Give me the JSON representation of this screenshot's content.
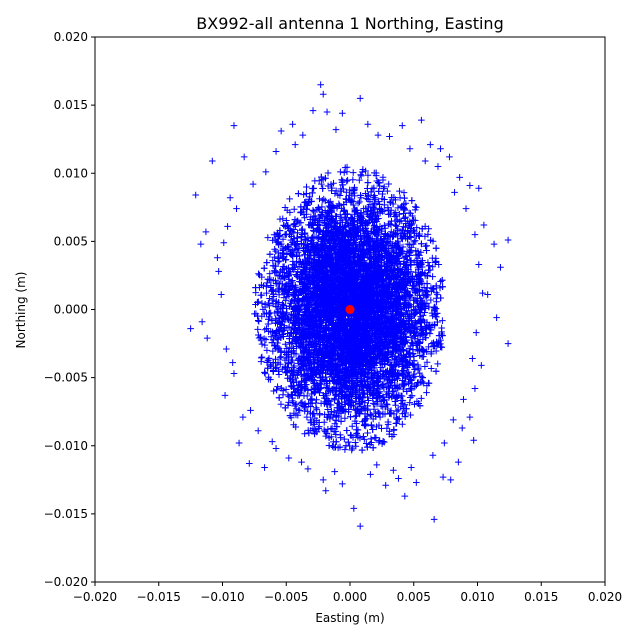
{
  "chart_data": {
    "type": "scatter",
    "title": "BX992-all antenna 1 Northing, Easting",
    "xlabel": "Easting (m)",
    "ylabel": "Northing (m)",
    "xlim": [
      -0.02,
      0.02
    ],
    "ylim": [
      -0.02,
      0.02
    ],
    "xticks": [
      "−0.020",
      "−0.015",
      "−0.010",
      "−0.005",
      "0.000",
      "0.005",
      "0.010",
      "0.015",
      "0.020"
    ],
    "yticks": [
      "−0.020",
      "−0.015",
      "−0.010",
      "−0.005",
      "0.000",
      "0.005",
      "0.010",
      "0.015",
      "0.020"
    ],
    "xtick_values": [
      -0.02,
      -0.015,
      -0.01,
      -0.005,
      0,
      0.005,
      0.01,
      0.015,
      0.02
    ],
    "ytick_values": [
      -0.02,
      -0.015,
      -0.01,
      -0.005,
      0,
      0.005,
      0.01,
      0.015,
      0.02
    ],
    "grid": false,
    "colors": {
      "points": "#0000ff",
      "center": "#ff0000"
    },
    "cluster": {
      "center": [
        0.0,
        0.0
      ],
      "approx_sigma": [
        0.0032,
        0.0042
      ],
      "core_extent_x": [
        -0.0075,
        0.0075
      ],
      "core_extent_y": [
        -0.0105,
        0.0105
      ]
    },
    "series": [
      {
        "marker": "+",
        "values": [
          [
            -0.0121,
            0.0084
          ],
          [
            -0.0113,
            0.0057
          ],
          [
            -0.0125,
            -0.0014
          ],
          [
            -0.0116,
            -0.0009
          ],
          [
            -0.0108,
            0.0109
          ],
          [
            -0.0091,
            0.0135
          ],
          [
            -0.0117,
            0.0048
          ],
          [
            -0.0112,
            -0.0021
          ],
          [
            -0.0098,
            -0.0063
          ],
          [
            -0.0103,
            0.0028
          ],
          [
            -0.0094,
            0.0082
          ],
          [
            -0.0087,
            -0.0098
          ],
          [
            -0.0079,
            -0.0113
          ],
          [
            -0.0067,
            -0.0116
          ],
          [
            -0.0083,
            0.0112
          ],
          [
            -0.0054,
            0.0131
          ],
          [
            -0.0045,
            0.0136
          ],
          [
            -0.0037,
            0.0128
          ],
          [
            -0.0029,
            0.0146
          ],
          [
            -0.0023,
            0.0165
          ],
          [
            -0.0021,
            0.0158
          ],
          [
            -0.0018,
            0.0145
          ],
          [
            -0.0011,
            0.0132
          ],
          [
            -0.0006,
            0.0144
          ],
          [
            0.0008,
            0.0155
          ],
          [
            0.0014,
            0.0136
          ],
          [
            0.0022,
            0.0128
          ],
          [
            0.0041,
            0.0135
          ],
          [
            0.0056,
            0.0139
          ],
          [
            0.0063,
            0.0121
          ],
          [
            0.0071,
            0.0118
          ],
          [
            0.0078,
            0.0112
          ],
          [
            0.0086,
            0.0097
          ],
          [
            0.0094,
            0.0091
          ],
          [
            0.0101,
            0.0089
          ],
          [
            0.0105,
            0.0062
          ],
          [
            0.0113,
            0.0048
          ],
          [
            0.0118,
            0.0031
          ],
          [
            0.0124,
            0.0051
          ],
          [
            0.0108,
            0.0011
          ],
          [
            0.0115,
            -0.0006
          ],
          [
            0.0124,
            -0.0025
          ],
          [
            0.0103,
            -0.0041
          ],
          [
            0.0098,
            -0.0058
          ],
          [
            0.0094,
            -0.0079
          ],
          [
            0.0088,
            -0.0087
          ],
          [
            0.0097,
            -0.0096
          ],
          [
            0.0085,
            -0.0112
          ],
          [
            0.0079,
            -0.0125
          ],
          [
            0.0073,
            -0.0123
          ],
          [
            0.0066,
            -0.0154
          ],
          [
            0.0052,
            -0.0127
          ],
          [
            0.0043,
            -0.0137
          ],
          [
            0.0038,
            -0.0124
          ],
          [
            0.0028,
            -0.0129
          ],
          [
            0.0016,
            -0.0121
          ],
          [
            0.0008,
            -0.0159
          ],
          [
            0.0003,
            -0.0146
          ],
          [
            -0.0006,
            -0.0128
          ],
          [
            -0.0019,
            -0.0133
          ],
          [
            -0.0021,
            -0.0125
          ],
          [
            -0.0033,
            -0.0117
          ],
          [
            -0.0048,
            -0.0109
          ],
          [
            -0.0058,
            -0.0102
          ],
          [
            -0.0072,
            -0.0089
          ],
          [
            -0.0084,
            -0.0079
          ],
          [
            -0.0091,
            -0.0047
          ],
          [
            -0.0097,
            -0.0029
          ],
          [
            -0.0101,
            0.0011
          ],
          [
            -0.0104,
            0.0038
          ],
          [
            -0.0096,
            0.0061
          ],
          [
            -0.0089,
            0.0074
          ],
          [
            -0.0076,
            0.0092
          ],
          [
            -0.0066,
            0.0101
          ],
          [
            -0.0058,
            0.0116
          ],
          [
            -0.0043,
            0.0121
          ],
          [
            0.0031,
            0.0127
          ],
          [
            0.0047,
            0.0118
          ],
          [
            0.0059,
            0.0109
          ],
          [
            0.0069,
            0.0105
          ],
          [
            0.0082,
            0.0086
          ],
          [
            0.0091,
            0.0074
          ],
          [
            0.0098,
            0.0055
          ],
          [
            0.0101,
            0.0033
          ],
          [
            0.0104,
            0.0012
          ],
          [
            0.0099,
            -0.0017
          ],
          [
            0.0096,
            -0.0036
          ],
          [
            0.0089,
            -0.0066
          ],
          [
            0.0081,
            -0.0081
          ],
          [
            0.0074,
            -0.0098
          ],
          [
            0.0065,
            -0.0107
          ],
          [
            0.0048,
            -0.0116
          ],
          [
            0.0034,
            -0.0118
          ],
          [
            0.0021,
            -0.0114
          ],
          [
            -0.0012,
            -0.0119
          ],
          [
            -0.0038,
            -0.0112
          ],
          [
            -0.0061,
            -0.0097
          ],
          [
            -0.0078,
            -0.0074
          ],
          [
            -0.0092,
            -0.0039
          ],
          [
            -0.0099,
            0.0049
          ]
        ]
      },
      {
        "marker": "o",
        "values": [
          [
            0.0,
            0.0
          ]
        ]
      }
    ]
  }
}
